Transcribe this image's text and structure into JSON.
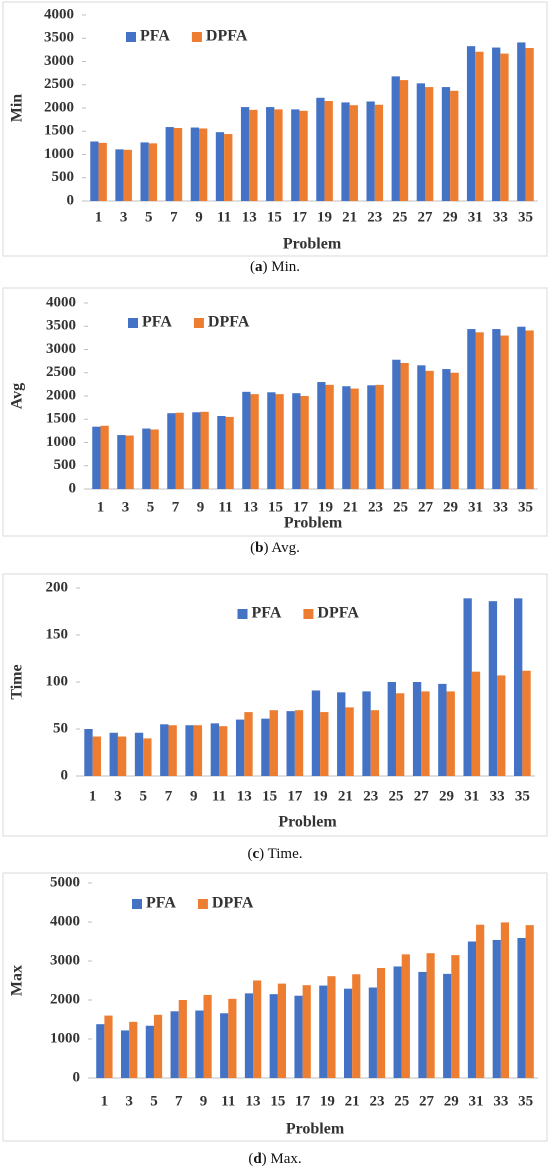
{
  "chart_data": [
    {
      "type": "bar",
      "caption": [
        "(",
        "a",
        ") Min."
      ],
      "x_label": "Problem",
      "y_label": "Min",
      "legend": "top-left",
      "categories": [
        "1",
        "3",
        "5",
        "7",
        "9",
        "11",
        "13",
        "15",
        "17",
        "19",
        "21",
        "23",
        "25",
        "27",
        "29",
        "31",
        "33",
        "35"
      ],
      "series": [
        {
          "name": "PFA",
          "color": "#4472c4",
          "values": [
            1280,
            1110,
            1260,
            1590,
            1580,
            1480,
            2020,
            2020,
            1970,
            2220,
            2120,
            2140,
            2680,
            2530,
            2450,
            3330,
            3300,
            3410
          ]
        },
        {
          "name": "DPFA",
          "color": "#ed7d31",
          "values": [
            1250,
            1100,
            1240,
            1570,
            1560,
            1440,
            1960,
            1970,
            1940,
            2150,
            2060,
            2070,
            2600,
            2450,
            2370,
            3210,
            3170,
            3290
          ]
        }
      ],
      "ylim": [
        0,
        4000
      ],
      "yticks": [
        0,
        500,
        1000,
        1500,
        2000,
        2500,
        3000,
        3500,
        4000
      ]
    },
    {
      "type": "bar",
      "caption": [
        "(",
        "b",
        ") Avg."
      ],
      "x_label": "Problem",
      "y_label": "Avg",
      "legend": "top-left",
      "categories": [
        "1",
        "3",
        "5",
        "7",
        "9",
        "11",
        "13",
        "15",
        "17",
        "19",
        "21",
        "23",
        "25",
        "27",
        "29",
        "31",
        "33",
        "35"
      ],
      "series": [
        {
          "name": "PFA",
          "color": "#4472c4",
          "values": [
            1340,
            1160,
            1300,
            1630,
            1650,
            1570,
            2090,
            2080,
            2060,
            2300,
            2210,
            2230,
            2780,
            2660,
            2580,
            3440,
            3440,
            3490
          ]
        },
        {
          "name": "DPFA",
          "color": "#ed7d31",
          "values": [
            1360,
            1150,
            1280,
            1640,
            1660,
            1550,
            2040,
            2040,
            2000,
            2240,
            2160,
            2240,
            2710,
            2540,
            2500,
            3370,
            3300,
            3410
          ]
        }
      ],
      "ylim": [
        0,
        4000
      ],
      "yticks": [
        0,
        500,
        1000,
        1500,
        2000,
        2500,
        3000,
        3500,
        4000
      ]
    },
    {
      "type": "bar",
      "caption": [
        "(",
        "c",
        ") Time."
      ],
      "x_label": "Problem",
      "y_label": "Time",
      "legend": "top-center",
      "categories": [
        "1",
        "3",
        "5",
        "7",
        "9",
        "11",
        "13",
        "15",
        "17",
        "19",
        "21",
        "23",
        "25",
        "27",
        "29",
        "31",
        "33",
        "35"
      ],
      "series": [
        {
          "name": "PFA",
          "color": "#4472c4",
          "values": [
            50,
            46,
            46,
            55,
            54,
            56,
            60,
            61,
            69,
            91,
            89,
            90,
            100,
            100,
            98,
            189,
            186,
            189
          ]
        },
        {
          "name": "DPFA",
          "color": "#ed7d31",
          "values": [
            42,
            42,
            40,
            54,
            54,
            53,
            68,
            70,
            70,
            68,
            73,
            70,
            88,
            90,
            90,
            111,
            107,
            112
          ]
        }
      ],
      "ylim": [
        0,
        200
      ],
      "yticks": [
        0,
        50,
        100,
        150,
        200
      ]
    },
    {
      "type": "bar",
      "caption": [
        "(",
        "d",
        ") Max."
      ],
      "x_label": "Problem",
      "y_label": "Max",
      "legend": "top-left",
      "categories": [
        "1",
        "3",
        "5",
        "7",
        "9",
        "11",
        "13",
        "15",
        "17",
        "19",
        "21",
        "23",
        "25",
        "27",
        "29",
        "31",
        "33",
        "35"
      ],
      "series": [
        {
          "name": "PFA",
          "color": "#4472c4",
          "values": [
            1380,
            1220,
            1340,
            1710,
            1730,
            1660,
            2170,
            2150,
            2110,
            2370,
            2290,
            2320,
            2860,
            2720,
            2670,
            3500,
            3540,
            3590
          ]
        },
        {
          "name": "DPFA",
          "color": "#ed7d31",
          "values": [
            1600,
            1440,
            1620,
            2000,
            2130,
            2030,
            2500,
            2420,
            2380,
            2610,
            2660,
            2820,
            3170,
            3200,
            3150,
            3930,
            3990,
            3920
          ]
        }
      ],
      "ylim": [
        0,
        5000
      ],
      "yticks": [
        0,
        1000,
        2000,
        3000,
        4000,
        5000
      ]
    }
  ]
}
